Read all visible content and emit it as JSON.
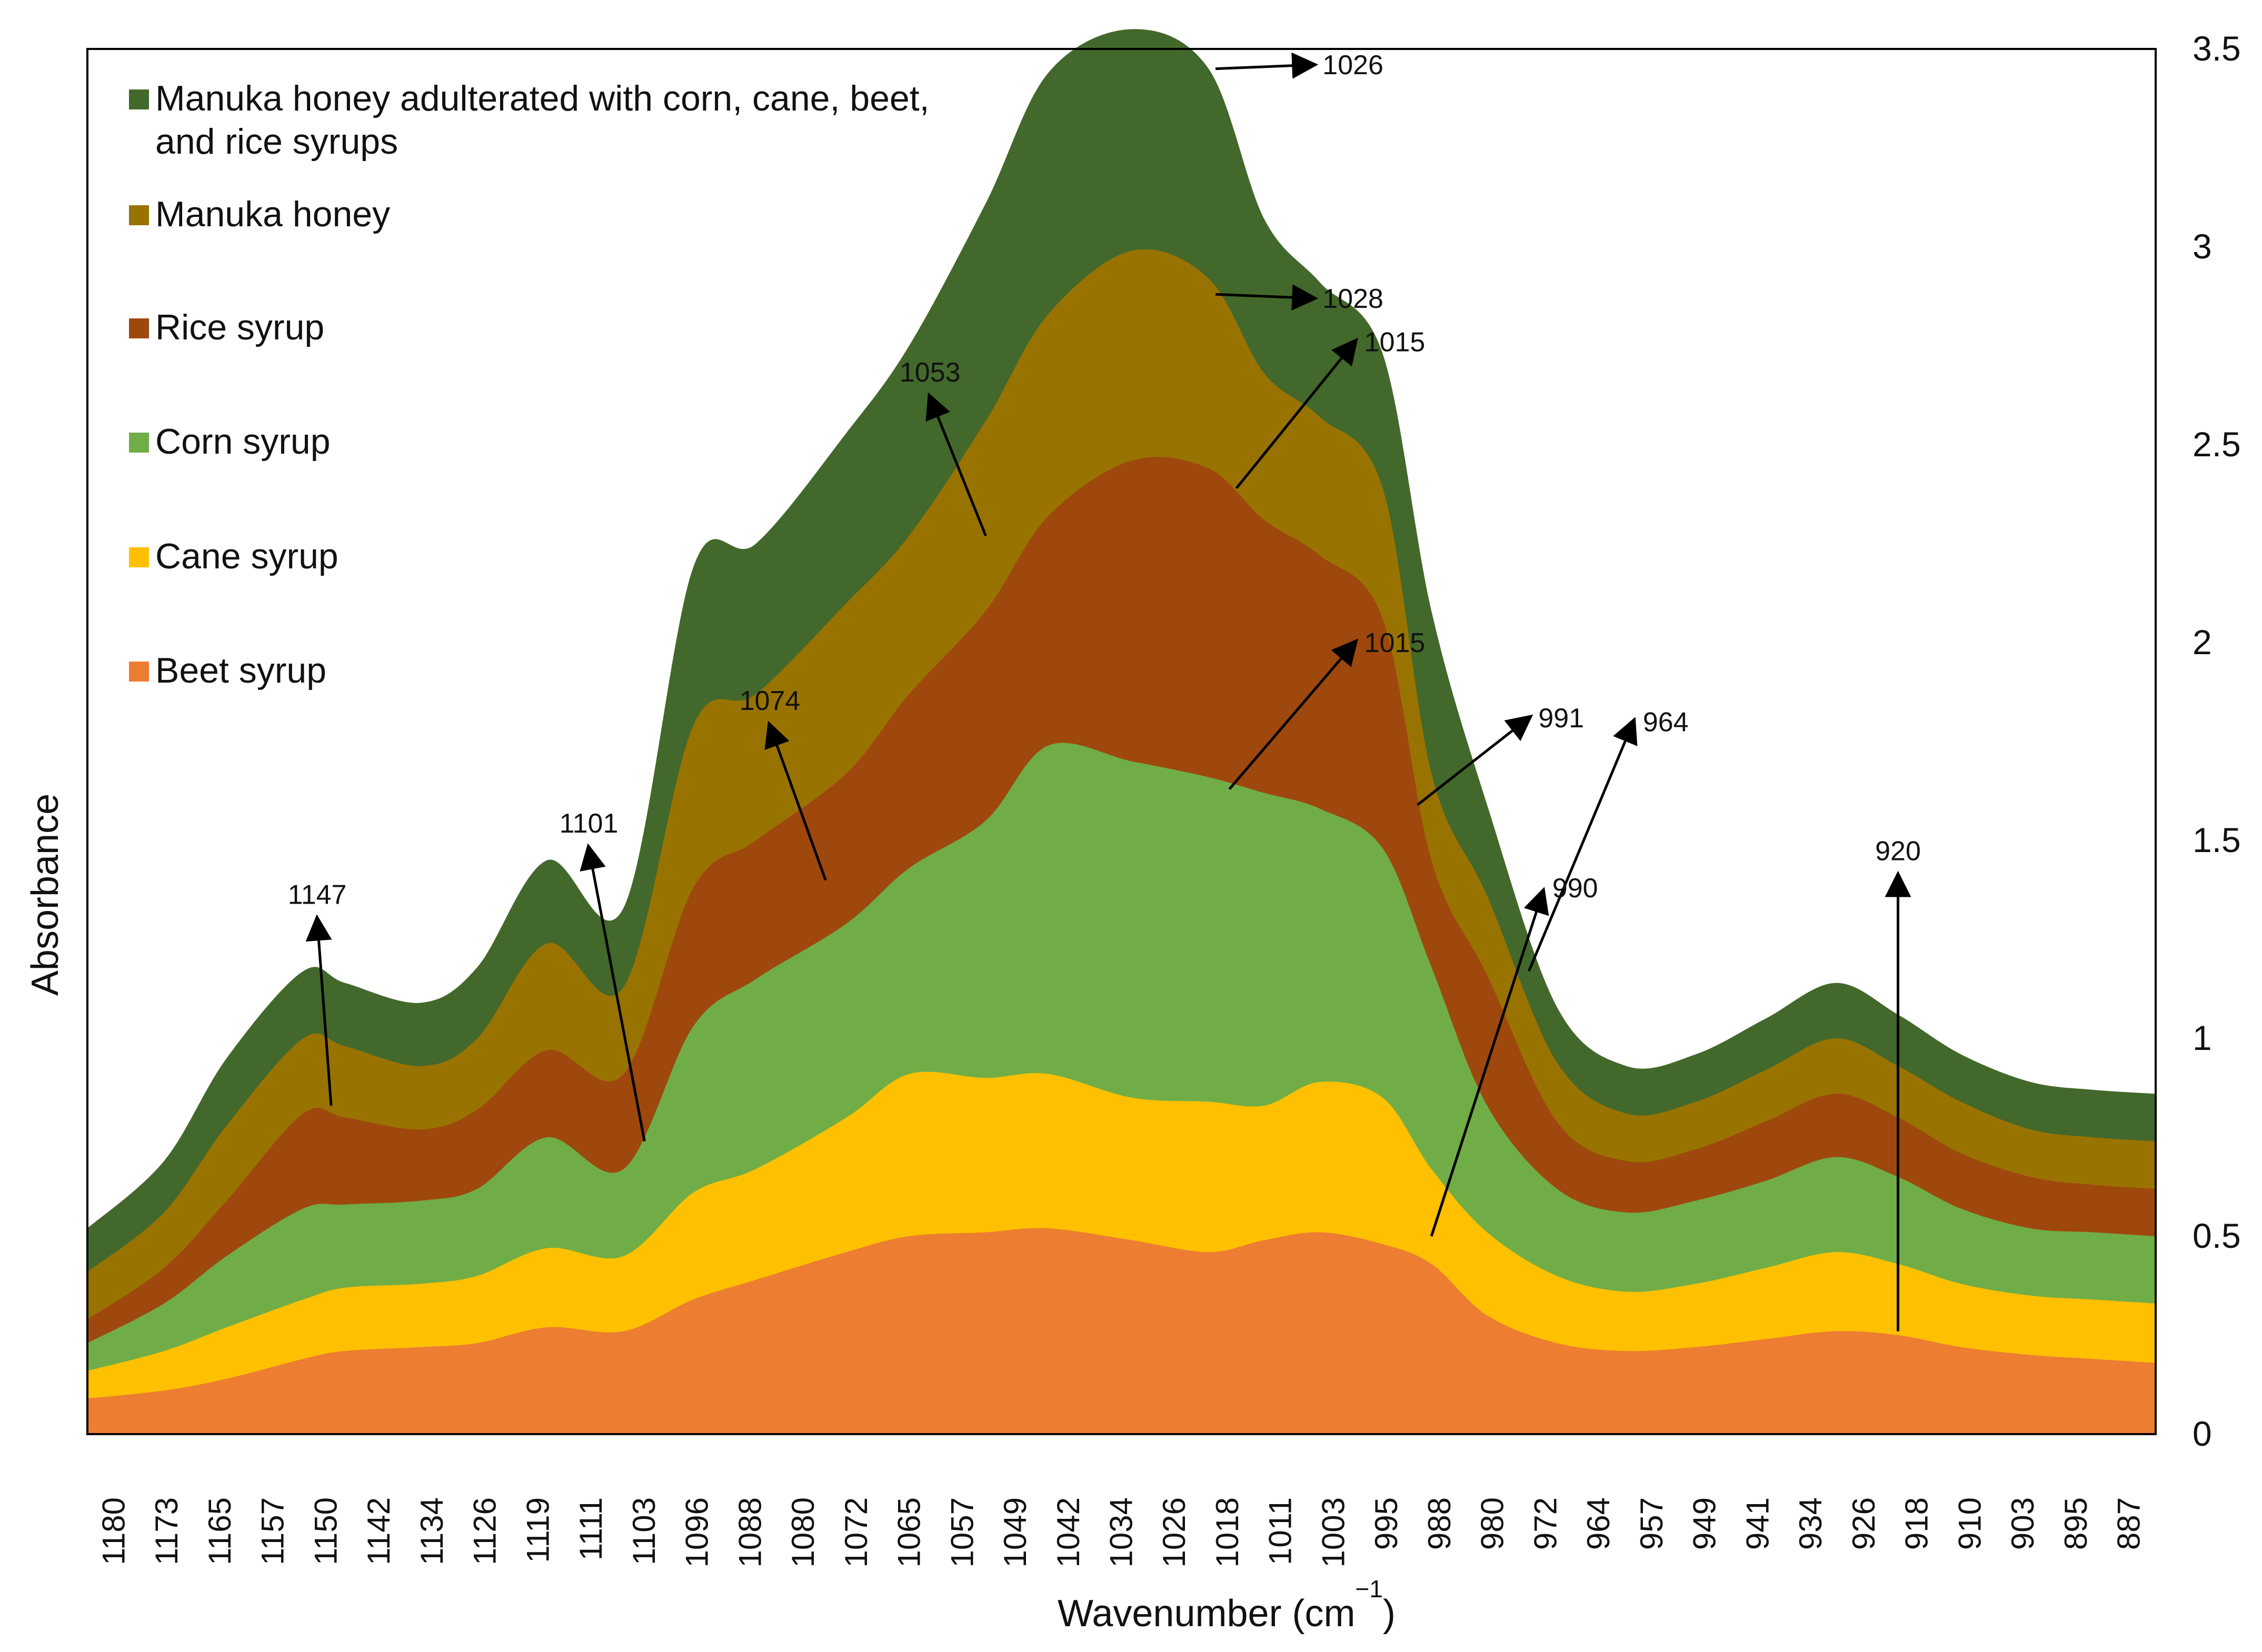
{
  "chart_data": {
    "type": "area",
    "stacked": true,
    "xlabel": "Wavenumber (cm",
    "xlabel_sup": "−1",
    "xlabel_close": ")",
    "ylabel": "Absorbance",
    "ylim": [
      0,
      3.5
    ],
    "y_axis_side": "right",
    "yticks": [
      "0",
      "0.5",
      "1",
      "1.5",
      "2",
      "2.5",
      "3",
      "3.5"
    ],
    "x_tick_labels": [
      "1180",
      "1173",
      "1165",
      "1157",
      "1150",
      "1142",
      "1134",
      "1126",
      "1119",
      "1111",
      "1103",
      "1096",
      "1088",
      "1080",
      "1072",
      "1065",
      "1057",
      "1049",
      "1042",
      "1034",
      "1026",
      "1018",
      "1011",
      "1003",
      "995",
      "988",
      "980",
      "972",
      "964",
      "957",
      "949",
      "941",
      "934",
      "926",
      "918",
      "910",
      "903",
      "895",
      "887"
    ],
    "x_reversed": true,
    "legend_position": "top-left",
    "x": [
      1181,
      1170,
      1161,
      1150,
      1144,
      1133,
      1125,
      1115,
      1104,
      1094,
      1085,
      1072,
      1063,
      1052,
      1043,
      1031,
      1020,
      1012,
      1004,
      995,
      988,
      980,
      970,
      960,
      950,
      940,
      930,
      921,
      912,
      902,
      893,
      884
    ],
    "series": [
      {
        "name": "Beet syrup",
        "color": "#ED7D31",
        "values": [
          0.09,
          0.11,
          0.14,
          0.19,
          0.21,
          0.22,
          0.23,
          0.27,
          0.26,
          0.34,
          0.39,
          0.46,
          0.5,
          0.51,
          0.52,
          0.49,
          0.46,
          0.49,
          0.51,
          0.48,
          0.43,
          0.3,
          0.23,
          0.21,
          0.22,
          0.24,
          0.26,
          0.25,
          0.22,
          0.2,
          0.19,
          0.18
        ]
      },
      {
        "name": "Cane syrup",
        "color": "#FFC000",
        "values": [
          0.07,
          0.1,
          0.13,
          0.15,
          0.16,
          0.16,
          0.17,
          0.2,
          0.19,
          0.27,
          0.28,
          0.34,
          0.41,
          0.39,
          0.39,
          0.36,
          0.38,
          0.34,
          0.38,
          0.37,
          0.24,
          0.21,
          0.17,
          0.15,
          0.16,
          0.18,
          0.2,
          0.18,
          0.16,
          0.15,
          0.15,
          0.15
        ]
      },
      {
        "name": "Corn syrup",
        "color": "#70AD47",
        "values": [
          0.07,
          0.12,
          0.18,
          0.23,
          0.21,
          0.21,
          0.22,
          0.28,
          0.22,
          0.42,
          0.48,
          0.49,
          0.52,
          0.65,
          0.83,
          0.85,
          0.82,
          0.79,
          0.69,
          0.63,
          0.51,
          0.32,
          0.22,
          0.2,
          0.21,
          0.22,
          0.24,
          0.22,
          0.19,
          0.17,
          0.17,
          0.17
        ]
      },
      {
        "name": "Rice syrup",
        "color": "#9E480E",
        "values": [
          0.06,
          0.09,
          0.14,
          0.24,
          0.22,
          0.18,
          0.2,
          0.22,
          0.24,
          0.35,
          0.35,
          0.38,
          0.44,
          0.53,
          0.58,
          0.76,
          0.78,
          0.69,
          0.64,
          0.58,
          0.27,
          0.33,
          0.17,
          0.13,
          0.13,
          0.15,
          0.16,
          0.15,
          0.14,
          0.13,
          0.12,
          0.12
        ]
      },
      {
        "name": "Manuka honey",
        "color": "#997300",
        "values": [
          0.12,
          0.14,
          0.19,
          0.19,
          0.18,
          0.16,
          0.18,
          0.27,
          0.22,
          0.41,
          0.37,
          0.43,
          0.4,
          0.48,
          0.51,
          0.53,
          0.48,
          0.37,
          0.35,
          0.33,
          0.22,
          0.2,
          0.15,
          0.12,
          0.12,
          0.13,
          0.14,
          0.13,
          0.13,
          0.12,
          0.12,
          0.12
        ]
      },
      {
        "name": "Manuka honey adulterated with corn, cane, beet, and rice syrups",
        "color": "#43682B",
        "values": [
          0.11,
          0.13,
          0.17,
          0.17,
          0.16,
          0.16,
          0.18,
          0.21,
          0.2,
          0.4,
          0.38,
          0.43,
          0.48,
          0.55,
          0.61,
          0.56,
          0.53,
          0.39,
          0.34,
          0.34,
          0.41,
          0.23,
          0.14,
          0.12,
          0.12,
          0.13,
          0.14,
          0.13,
          0.12,
          0.12,
          0.12,
          0.12
        ]
      }
    ],
    "annotations": [
      {
        "text": "1026",
        "arrow": [
          1019,
          3.45,
          1005,
          3.46
        ]
      },
      {
        "text": "1028",
        "arrow": [
          1019,
          2.88,
          1005,
          2.87
        ]
      },
      {
        "text": "1015",
        "arrow": [
          1016,
          2.39,
          999,
          2.76
        ]
      },
      {
        "text": "1053",
        "arrow": [
          1052,
          2.27,
          1060,
          2.62
        ]
      },
      {
        "text": "1074",
        "arrow": [
          1075,
          1.4,
          1083,
          1.79
        ]
      },
      {
        "text": "1015",
        "arrow": [
          1017,
          1.63,
          999,
          2.0
        ]
      },
      {
        "text": "991",
        "arrow": [
          990,
          1.59,
          974,
          1.81
        ]
      },
      {
        "text": "964",
        "arrow": [
          974,
          1.17,
          959,
          1.8
        ]
      },
      {
        "text": "990",
        "arrow": [
          988,
          0.5,
          972,
          1.37
        ]
      },
      {
        "text": "1101",
        "arrow": [
          1101,
          0.74,
          1109,
          1.48
        ]
      },
      {
        "text": "1147",
        "arrow": [
          1146,
          0.83,
          1148,
          1.3
        ]
      },
      {
        "text": "920",
        "arrow": [
          921,
          0.26,
          921,
          1.41
        ]
      }
    ]
  }
}
